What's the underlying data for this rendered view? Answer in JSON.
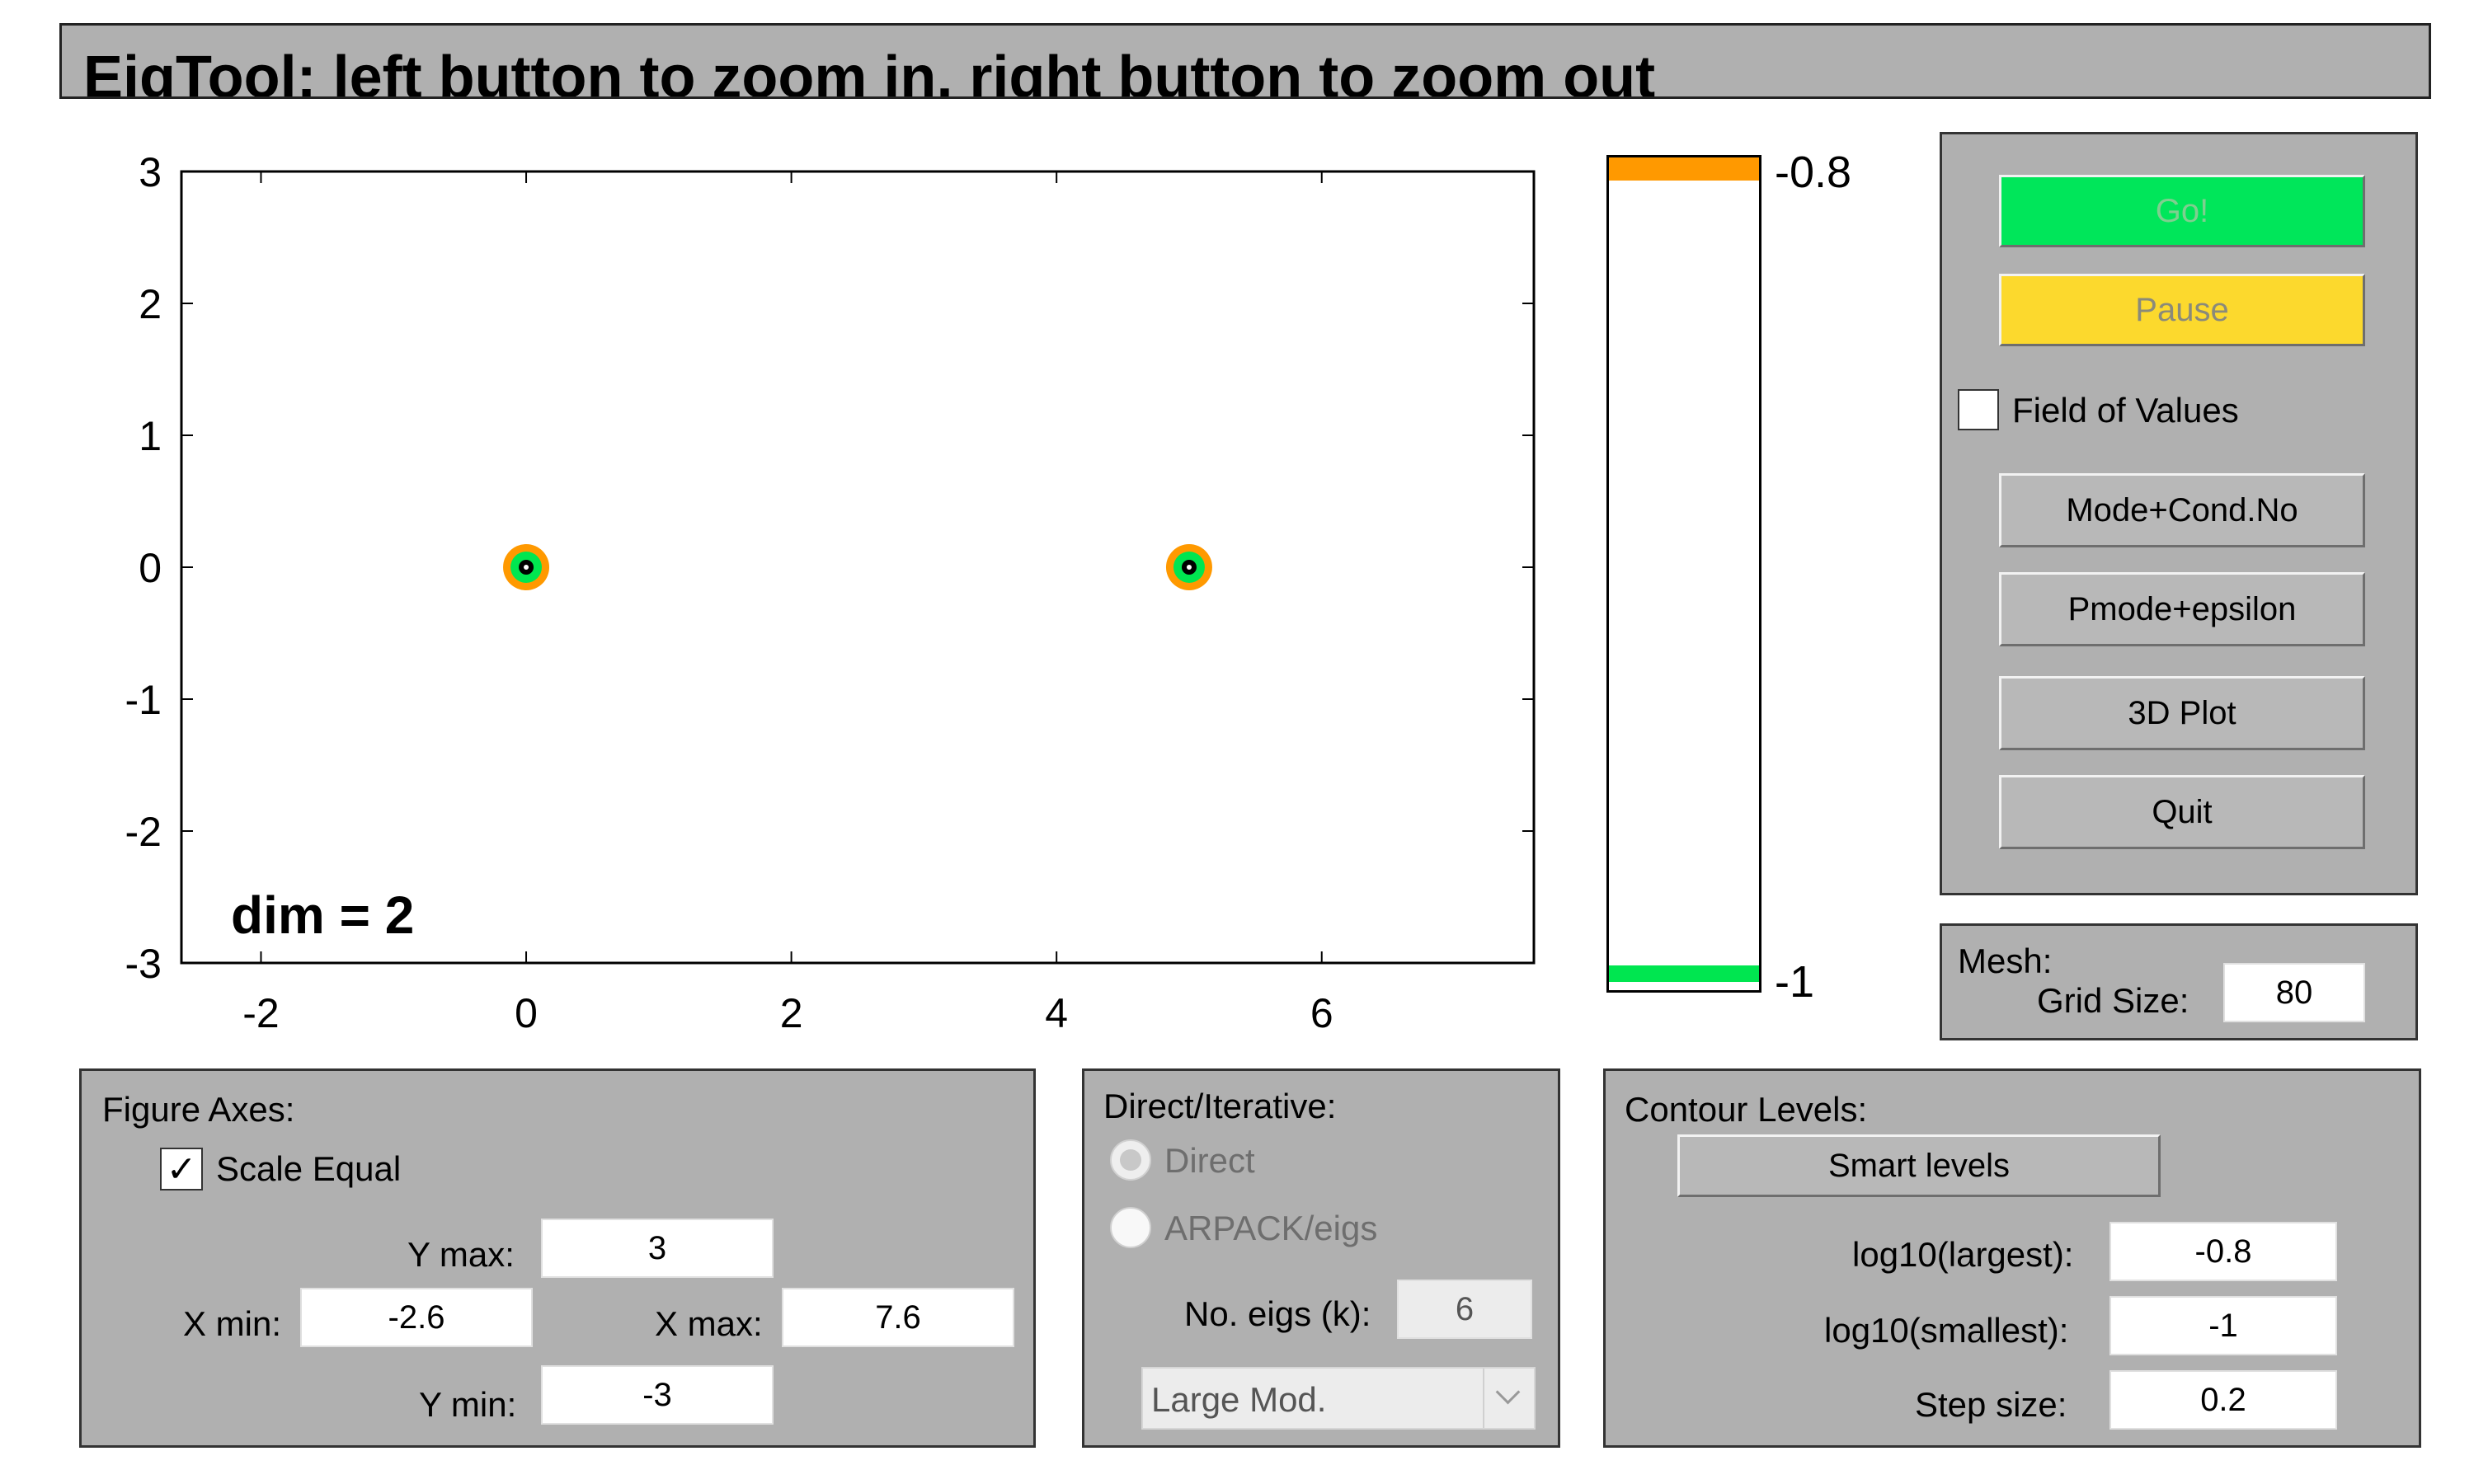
{
  "title": "EigTool: left button to zoom in, right button to zoom out",
  "plot": {
    "x_ticks": [
      "-2",
      "0",
      "2",
      "4",
      "6"
    ],
    "y_ticks": [
      "3",
      "2",
      "1",
      "0",
      "-1",
      "-2",
      "-3"
    ],
    "dim_label": "dim = 2",
    "eigenvalues": [
      {
        "re": 0,
        "im": 0
      },
      {
        "re": 5,
        "im": 0
      }
    ]
  },
  "chart_data": {
    "type": "scatter",
    "title": "EigTool",
    "xlim": [
      -2.6,
      7.6
    ],
    "ylim": [
      -3,
      3
    ],
    "x": [
      0,
      5
    ],
    "y": [
      0,
      0
    ],
    "contour_levels": [
      -0.8,
      -1
    ],
    "contour_colors": {
      "-0.8": "#ff9900",
      "-1": "#00e650"
    }
  },
  "colorbar": {
    "top_label": "-0.8",
    "bottom_label": "-1"
  },
  "controls": {
    "go_label": "Go!",
    "pause_label": "Pause",
    "fov_label": "Field of Values",
    "mode_cond_label": "Mode+Cond.No",
    "pmode_label": "Pmode+epsilon",
    "plot3d_label": "3D Plot",
    "quit_label": "Quit"
  },
  "mesh": {
    "title": "Mesh:",
    "grid_size_label": "Grid Size:",
    "grid_size_value": "80"
  },
  "figure_axes": {
    "title": "Figure Axes:",
    "scale_equal_label": "Scale Equal",
    "scale_equal_checked": "✓",
    "ymax_label": "Y max:",
    "ymax_value": "3",
    "xmin_label": "X min:",
    "xmin_value": "-2.6",
    "xmax_label": "X max:",
    "xmax_value": "7.6",
    "ymin_label": "Y min:",
    "ymin_value": "-3"
  },
  "direct_iterative": {
    "title": "Direct/Iterative:",
    "direct_label": "Direct",
    "arpack_label": "ARPACK/eigs",
    "no_eigs_label": "No. eigs (k):",
    "no_eigs_value": "6",
    "which_value": "Large Mod."
  },
  "contour": {
    "title": "Contour Levels:",
    "smart_label": "Smart  levels",
    "largest_label": "log10(largest):",
    "largest_value": "-0.8",
    "smallest_label": "log10(smallest):",
    "smallest_value": "-1",
    "step_label": "Step size:",
    "step_value": "0.2"
  },
  "colors": {
    "panel": "#b0b0b0",
    "go": "#00e65a",
    "pause": "#fcd92d",
    "orange": "#ff9900",
    "green": "#00e650"
  }
}
